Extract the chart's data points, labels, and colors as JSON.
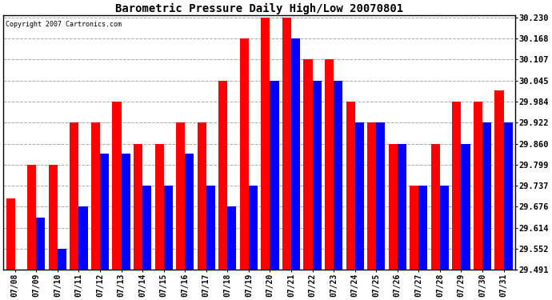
{
  "title": "Barometric Pressure Daily High/Low 20070801",
  "copyright": "Copyright 2007 Cartronics.com",
  "dates": [
    "07/08",
    "07/09",
    "07/10",
    "07/11",
    "07/12",
    "07/13",
    "07/14",
    "07/15",
    "07/16",
    "07/17",
    "07/18",
    "07/19",
    "07/20",
    "07/21",
    "07/22",
    "07/23",
    "07/24",
    "07/25",
    "07/26",
    "07/27",
    "07/28",
    "07/29",
    "07/30",
    "07/31"
  ],
  "highs": [
    29.7,
    29.799,
    29.799,
    29.922,
    29.922,
    29.984,
    29.86,
    29.86,
    29.922,
    29.922,
    30.045,
    30.168,
    30.23,
    30.23,
    30.107,
    30.107,
    29.984,
    29.922,
    29.86,
    29.737,
    29.86,
    29.984,
    29.984,
    30.015
  ],
  "lows": [
    29.491,
    29.645,
    29.552,
    29.676,
    29.83,
    29.83,
    29.737,
    29.737,
    29.83,
    29.737,
    29.676,
    29.737,
    30.045,
    30.168,
    30.045,
    30.045,
    29.922,
    29.922,
    29.86,
    29.737,
    29.737,
    29.86,
    29.922,
    29.922
  ],
  "high_color": "#ff0000",
  "low_color": "#0000ff",
  "bg_color": "#ffffff",
  "grid_color": "#aaaaaa",
  "yticks": [
    29.491,
    29.552,
    29.614,
    29.676,
    29.737,
    29.799,
    29.86,
    29.922,
    29.984,
    30.045,
    30.107,
    30.168,
    30.23
  ],
  "ymin": 29.491,
  "ymax": 30.23,
  "bar_width": 0.42,
  "figwidth": 6.9,
  "figheight": 3.75,
  "dpi": 100
}
